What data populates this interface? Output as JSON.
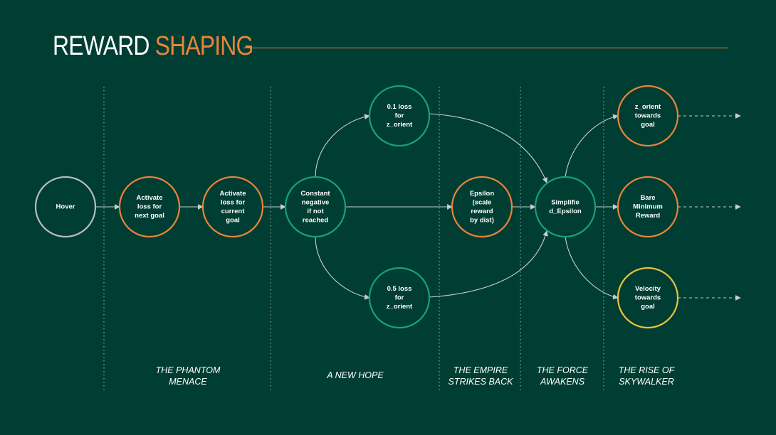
{
  "header": {
    "title_part1": "REWARD",
    "title_part2": "SHAPING",
    "colors": {
      "accent": "#e8843a",
      "background": "#003d33"
    }
  },
  "nodes": [
    {
      "id": "hover",
      "lines": [
        "Hover"
      ],
      "color": "gray"
    },
    {
      "id": "activate-next",
      "lines": [
        "Activate",
        "loss for",
        "next goal"
      ],
      "color": "orange"
    },
    {
      "id": "activate-current",
      "lines": [
        "Activate",
        "loss for",
        "current",
        "goal"
      ],
      "color": "orange"
    },
    {
      "id": "constant-negative",
      "lines": [
        "Constant",
        "negative",
        "if not",
        "reached"
      ],
      "color": "green"
    },
    {
      "id": "loss-01",
      "lines": [
        "0.1 loss",
        "for",
        "z_orient"
      ],
      "color": "green"
    },
    {
      "id": "loss-05",
      "lines": [
        "0.5 loss",
        "for",
        "z_orient"
      ],
      "color": "green"
    },
    {
      "id": "epsilon",
      "lines": [
        "Epsilon",
        "(scale",
        "reward",
        "by dist)"
      ],
      "color": "orange"
    },
    {
      "id": "simplified-epsilon",
      "lines": [
        "Simplifie",
        "d_Epsilon"
      ],
      "color": "green"
    },
    {
      "id": "z-orient-goal",
      "lines": [
        "z_orient",
        "towards",
        "goal"
      ],
      "color": "orange"
    },
    {
      "id": "bare-minimum",
      "lines": [
        "Bare",
        "Minimum",
        "Reward"
      ],
      "color": "orange"
    },
    {
      "id": "velocity-goal",
      "lines": [
        "Velocity",
        "towards",
        "goal"
      ],
      "color": "yellow"
    }
  ],
  "edges": [
    [
      "hover",
      "activate-next"
    ],
    [
      "activate-next",
      "activate-current"
    ],
    [
      "activate-current",
      "constant-negative"
    ],
    [
      "constant-negative",
      "loss-01"
    ],
    [
      "constant-negative",
      "loss-05"
    ],
    [
      "constant-negative",
      "epsilon"
    ],
    [
      "loss-01",
      "simplified-epsilon"
    ],
    [
      "loss-05",
      "simplified-epsilon"
    ],
    [
      "epsilon",
      "simplified-epsilon"
    ],
    [
      "simplified-epsilon",
      "z-orient-goal"
    ],
    [
      "simplified-epsilon",
      "bare-minimum"
    ],
    [
      "simplified-epsilon",
      "velocity-goal"
    ]
  ],
  "eras": [
    {
      "id": "phantom-menace",
      "lines": [
        "THE PHANTOM",
        "MENACE"
      ]
    },
    {
      "id": "new-hope",
      "lines": [
        "A NEW HOPE"
      ]
    },
    {
      "id": "empire-strikes-back",
      "lines": [
        "THE EMPIRE",
        "STRIKES BACK"
      ]
    },
    {
      "id": "force-awakens",
      "lines": [
        "THE FORCE",
        "AWAKENS"
      ]
    },
    {
      "id": "rise-of-skywalker",
      "lines": [
        "THE RISE OF",
        "SKYWALKER"
      ]
    }
  ]
}
